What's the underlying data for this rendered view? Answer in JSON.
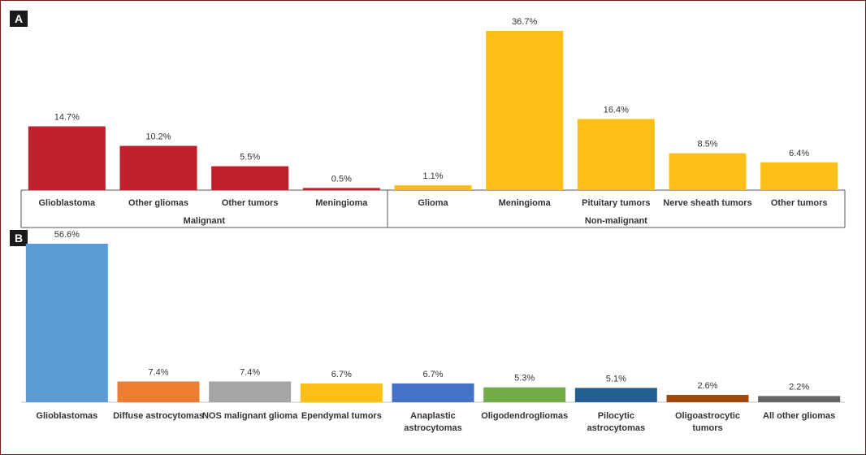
{
  "chart_data": [
    {
      "panel_label": "A",
      "type": "bar",
      "title": "",
      "xlabel": "",
      "ylabel": "",
      "ylim": [
        0,
        40
      ],
      "grid": false,
      "groups": [
        {
          "name": "Malignant",
          "categories": [
            "Glioblastoma",
            "Other gliomas",
            "Other tumors",
            "Meningioma"
          ]
        },
        {
          "name": "Non-malignant",
          "categories": [
            "Glioma",
            "Meningioma",
            "Pituitary tumors",
            "Nerve sheath tumors",
            "Other tumors"
          ]
        }
      ],
      "categories": [
        "Glioblastoma",
        "Other gliomas",
        "Other tumors",
        "Meningioma",
        "Glioma",
        "Meningioma",
        "Pituitary tumors",
        "Nerve sheath tumors",
        "Other tumors"
      ],
      "values": [
        14.7,
        10.2,
        5.5,
        0.5,
        1.1,
        36.7,
        16.4,
        8.5,
        6.4
      ],
      "labels": [
        "14.7%",
        "10.2%",
        "5.5%",
        "0.5%",
        "1.1%",
        "36.7%",
        "16.4%",
        "8.5%",
        "6.4%"
      ],
      "colors": [
        "#c0202a",
        "#c0202a",
        "#c0202a",
        "#c0202a",
        "#fbbf17",
        "#fbbf17",
        "#fbbf17",
        "#fbbf17",
        "#fbbf17"
      ]
    },
    {
      "panel_label": "B",
      "type": "bar",
      "title": "",
      "xlabel": "",
      "ylabel": "",
      "ylim": [
        0,
        60
      ],
      "grid": false,
      "categories": [
        [
          "Glioblastomas"
        ],
        [
          "Diffuse astrocytomas"
        ],
        [
          "NOS malignant glioma"
        ],
        [
          "Ependymal tumors"
        ],
        [
          "Anaplastic",
          "astrocytomas"
        ],
        [
          "Oligodendrogliomas"
        ],
        [
          "Pilocytic",
          "astrocytomas"
        ],
        [
          "Oligoastrocytic",
          "tumors"
        ],
        [
          "All other gliomas"
        ]
      ],
      "values": [
        56.6,
        7.4,
        7.4,
        6.7,
        6.7,
        5.3,
        5.1,
        2.6,
        2.2
      ],
      "labels": [
        "56.6%",
        "7.4%",
        "7.4%",
        "6.7%",
        "6.7%",
        "5.3%",
        "5.1%",
        "2.6%",
        "2.2%"
      ],
      "colors": [
        "#5b9bd5",
        "#ed7d31",
        "#a5a5a5",
        "#fbbf17",
        "#4472c4",
        "#70ad47",
        "#255e91",
        "#9e480e",
        "#636363"
      ]
    }
  ]
}
